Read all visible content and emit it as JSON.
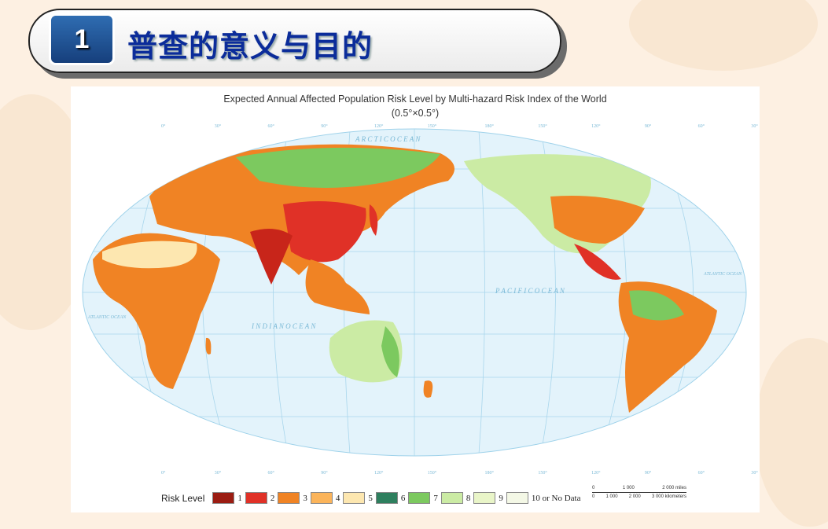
{
  "header": {
    "number": "1",
    "title": "普查的意义与目的"
  },
  "map": {
    "title": "Expected Annual Affected Population Risk Level by Multi-hazard Risk Index of the World",
    "subtitle": "(0.5°×0.5°)",
    "ocean_labels": {
      "arctic": "A R C T I C   O C E A N",
      "pacific": "P A C I F I C   O C E A N",
      "indian": "I N D I A N   O C E A N",
      "atlantic_left": "ATLANTIC OCEAN",
      "atlantic_right": "ATLANTIC OCEAN"
    },
    "longitude_labels": [
      "0°",
      "30°",
      "60°",
      "90°",
      "120°",
      "150°",
      "180°",
      "150°",
      "120°",
      "90°",
      "60°",
      "30°"
    ],
    "colors": {
      "ocean": "#e3f3fb",
      "graticule": "#9fd2ea"
    }
  },
  "legend": {
    "label": "Risk Level",
    "items": [
      {
        "label": "1",
        "color": "#9b1c12"
      },
      {
        "label": "2",
        "color": "#e03127"
      },
      {
        "label": "3",
        "color": "#f08324"
      },
      {
        "label": "4",
        "color": "#fbb45a"
      },
      {
        "label": "5",
        "color": "#fde7b0"
      },
      {
        "label": "6",
        "color": "#2e7f5e"
      },
      {
        "label": "7",
        "color": "#7cc95f"
      },
      {
        "label": "8",
        "color": "#cbeba4"
      },
      {
        "label": "9",
        "color": "#e9f5c8"
      },
      {
        "label": "10 or No Data",
        "color": "#f4f8e6"
      }
    ],
    "scale": {
      "miles": [
        "0",
        "1 000",
        "2 000 miles"
      ],
      "km": [
        "0",
        "1 000",
        "2 000",
        "3 000 kilometers"
      ]
    }
  }
}
